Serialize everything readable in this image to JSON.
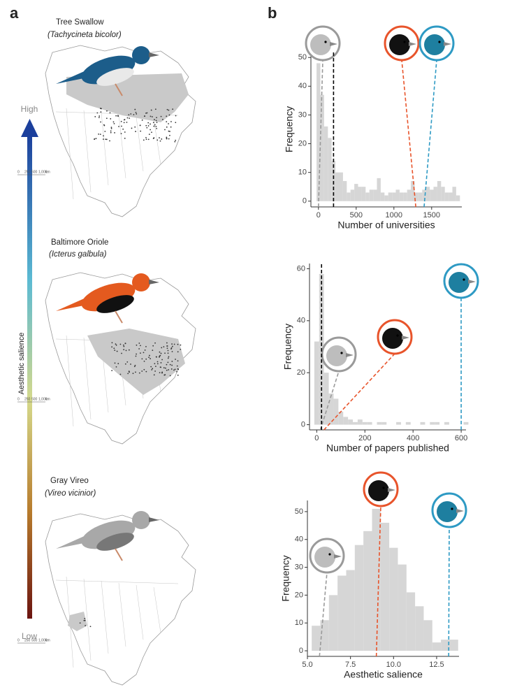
{
  "panel_labels": [
    "a",
    "b"
  ],
  "species": [
    {
      "common_name": "Tree Swallow",
      "scientific_name": "(Tachycineta bicolor)"
    },
    {
      "common_name": "Baltimore Oriole",
      "scientific_name": "(Icterus galbula)"
    },
    {
      "common_name": "Gray Vireo",
      "scientific_name": "(Vireo vicinior)"
    }
  ],
  "salience_arrow": {
    "label": "Aesthetic salience",
    "high": "High",
    "low": "Low"
  },
  "map_scale": [
    "0",
    "250",
    "500",
    "1,000",
    "km"
  ],
  "chart_data": [
    {
      "type": "histogram",
      "x_label": "Number of universities",
      "y_label": "Frequency",
      "color": "#d6d6d6",
      "bins": [
        -25,
        25,
        75,
        125,
        175,
        225,
        275,
        325,
        375,
        425,
        475,
        525,
        575,
        625,
        675,
        725,
        775,
        825,
        875,
        925,
        975,
        1025,
        1075,
        1125,
        1175,
        1225,
        1275,
        1325,
        1375,
        1425,
        1475,
        1525,
        1575,
        1625,
        1675,
        1725,
        1775,
        1825,
        1875
      ],
      "values": [
        48,
        37,
        26,
        22,
        14,
        10,
        10,
        7,
        3,
        4,
        6,
        5,
        5,
        3,
        4,
        4,
        8,
        3,
        2,
        3,
        3,
        4,
        3,
        3,
        4,
        7,
        3,
        3,
        4,
        5,
        4,
        5,
        7,
        5,
        3,
        3,
        5,
        2
      ],
      "xlim": [
        -100,
        1900
      ],
      "xticks": [
        0,
        500,
        1000,
        1500
      ],
      "ylim": [
        -2,
        52
      ],
      "yticks": [
        0,
        10,
        20,
        30,
        40,
        50
      ],
      "reference_lines": [
        {
          "value": 0,
          "color": "#9a9a9a"
        },
        {
          "value": 200,
          "color": "#000000"
        },
        {
          "value": 1290,
          "color": "#e8542b"
        },
        {
          "value": 1400,
          "color": "#2e9ac4"
        }
      ]
    },
    {
      "type": "histogram",
      "x_label": "Number of papers published",
      "y_label": "Frequency",
      "color": "#d6d6d6",
      "bins": [
        -10,
        10,
        30,
        50,
        70,
        90,
        110,
        130,
        150,
        170,
        190,
        210,
        230,
        250,
        270,
        290,
        310,
        330,
        350,
        370,
        390,
        410,
        430,
        450,
        470,
        490,
        510,
        530,
        550,
        570,
        590,
        610,
        630
      ],
      "values": [
        32,
        58,
        20,
        12,
        10,
        5,
        3,
        2,
        1,
        2,
        1,
        1,
        0,
        1,
        1,
        0,
        0,
        1,
        0,
        1,
        0,
        0,
        1,
        0,
        1,
        1,
        0,
        1,
        0,
        0,
        0,
        1
      ],
      "xlim": [
        -30,
        620
      ],
      "xticks": [
        0,
        200,
        400,
        600
      ],
      "ylim": [
        -2,
        62
      ],
      "yticks": [
        0,
        20,
        40,
        60
      ],
      "reference_lines": [
        {
          "value": 15,
          "color": "#9a9a9a"
        },
        {
          "value": 20,
          "color": "#000000"
        },
        {
          "value": 30,
          "color": "#e8542b"
        },
        {
          "value": 600,
          "color": "#2e9ac4"
        }
      ]
    },
    {
      "type": "histogram",
      "x_label": "Aesthetic salience",
      "y_label": "Frequency",
      "color": "#d6d6d6",
      "bins": [
        5.25,
        5.75,
        6.25,
        6.75,
        7.25,
        7.75,
        8.25,
        8.75,
        9.25,
        9.75,
        10.25,
        10.75,
        11.25,
        11.75,
        12.25,
        12.75,
        13.25,
        13.75
      ],
      "values": [
        9,
        11,
        20,
        27,
        29,
        38,
        43,
        51,
        46,
        37,
        31,
        21,
        16,
        11,
        3,
        4,
        4
      ],
      "xlim": [
        5.0,
        13.8
      ],
      "xticks": [
        {
          "value": 5.0,
          "label": "5.0"
        },
        {
          "value": 7.5,
          "label": "7.5"
        },
        {
          "value": 10.0,
          "label": "10.0"
        },
        {
          "value": 12.5,
          "label": "12.5"
        }
      ],
      "ylim": [
        -2,
        54
      ],
      "yticks": [
        0,
        10,
        20,
        30,
        40,
        50
      ],
      "reference_lines": [
        {
          "value": 5.7,
          "color": "#9a9a9a"
        },
        {
          "value": 9.0,
          "color": "#e8542b"
        },
        {
          "value": 13.2,
          "color": "#2e9ac4"
        }
      ]
    }
  ]
}
